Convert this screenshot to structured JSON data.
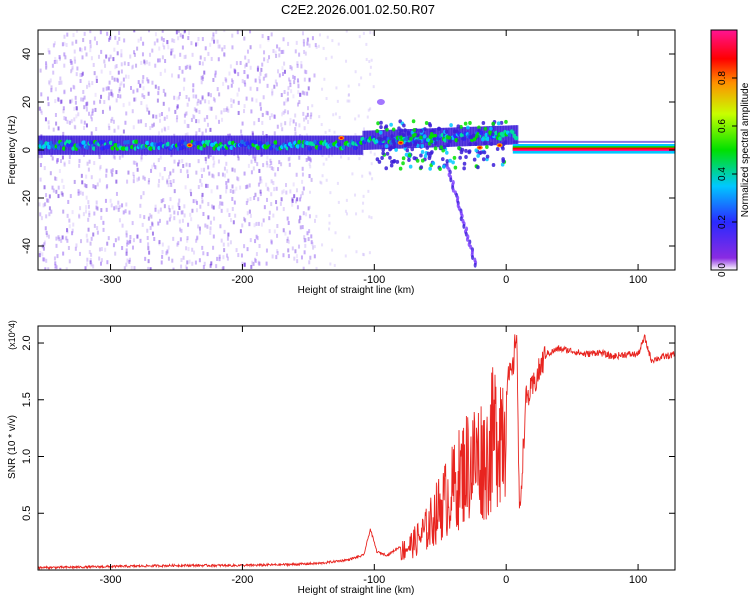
{
  "title": "C2E2.2026.001.02.50.R07",
  "colors": {
    "snr_line": "#e8241f",
    "axis": "#000000",
    "spectrogram_band": "#1c6ee8",
    "spectrogram_scatter": "#7a3cff"
  },
  "chart_data": [
    {
      "type": "heatmap",
      "xlabel": "Height of straight line (km)",
      "ylabel": "Frequency (Hz)",
      "xlim": [
        -355,
        128
      ],
      "ylim": [
        -50,
        50
      ],
      "xticks": [
        -300,
        -200,
        -100,
        0,
        100
      ],
      "yticks": [
        -40,
        -20,
        0,
        20,
        40
      ],
      "colorbar": {
        "label": "Normalized spectral amplitude",
        "range": [
          0.0,
          1.0
        ],
        "ticks": [
          "0.0",
          "0.2",
          "0.4",
          "0.6",
          "0.8"
        ],
        "colormap": "rainbow (purple-blue-cyan-green-yellow-red-magenta)"
      },
      "features": {
        "main_band_frequency_hz": 2,
        "noise_scatter_x_range": [
          -355,
          -155
        ],
        "strong_tone_x_range": [
          5,
          128
        ],
        "descending_branch": {
          "x": [
            -40,
            -30,
            -25
          ],
          "y": [
            -10,
            -25,
            -45
          ]
        },
        "upper_blob": {
          "x": -95,
          "y": 20
        }
      }
    },
    {
      "type": "line",
      "xlabel": "Height of straight line (km)",
      "ylabel": "SNR (10 * v/v)",
      "y_multiplier": "(x10^4)",
      "xlim": [
        -355,
        128
      ],
      "ylim": [
        0,
        2.15
      ],
      "xticks": [
        -300,
        -200,
        -100,
        0,
        100
      ],
      "yticks": [
        0.5,
        1.0,
        1.5,
        2.0
      ],
      "series": [
        {
          "x": [
            -355,
            -300,
            -250,
            -200,
            -160,
            -140,
            -120,
            -108,
            -103,
            -98,
            -90,
            -80,
            -70,
            -60,
            -50,
            -40,
            -30,
            -20,
            -15,
            -10,
            -5,
            0,
            5,
            8,
            10,
            15,
            20,
            30,
            40,
            50,
            60,
            70,
            80,
            90,
            100,
            105,
            110,
            120,
            128
          ],
          "y": [
            0.01,
            0.02,
            0.03,
            0.03,
            0.04,
            0.05,
            0.08,
            0.12,
            0.35,
            0.15,
            0.12,
            0.2,
            0.3,
            0.45,
            0.7,
            0.9,
            1.15,
            1.25,
            1.2,
            1.45,
            1.6,
            1.65,
            1.75,
            2.15,
            0.45,
            1.5,
            1.6,
            1.9,
            1.95,
            1.93,
            1.9,
            1.92,
            1.88,
            1.9,
            1.9,
            2.05,
            1.85,
            1.88,
            1.9
          ]
        }
      ]
    }
  ]
}
